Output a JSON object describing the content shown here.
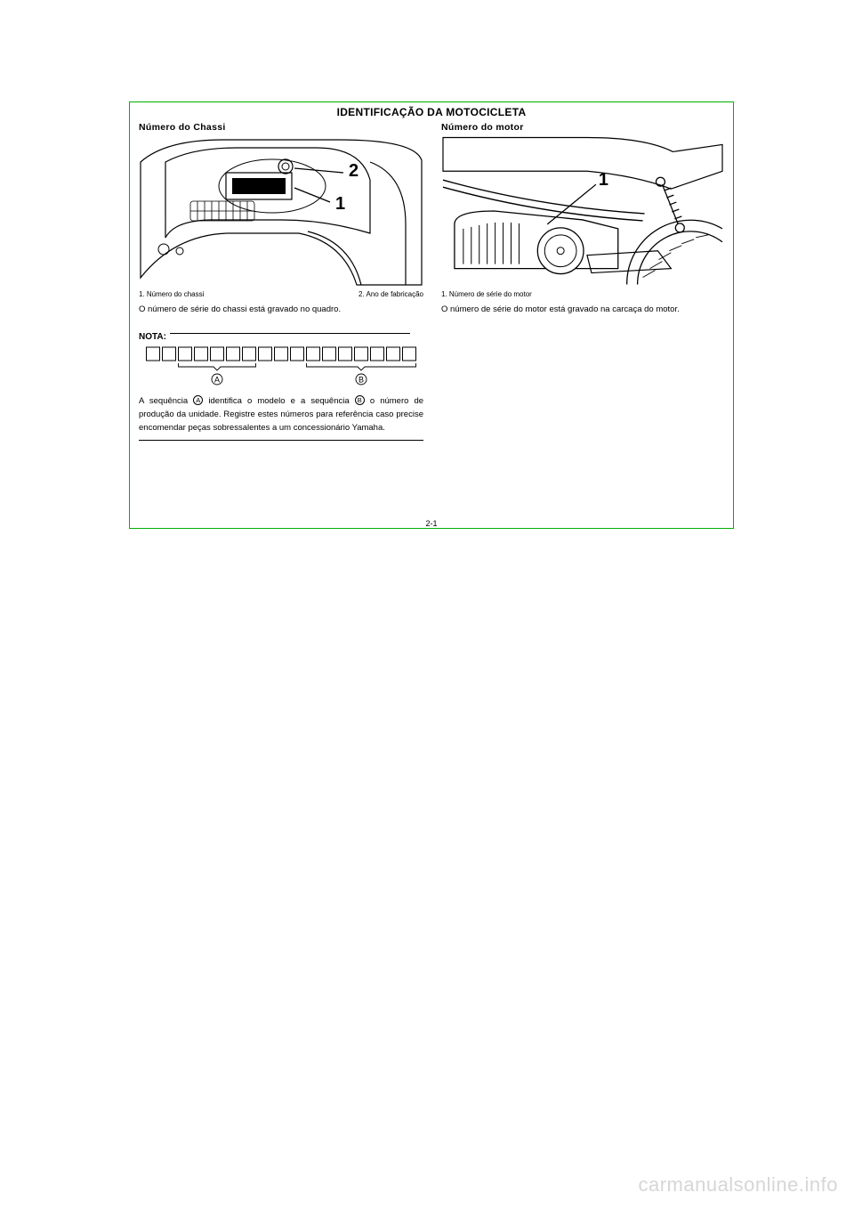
{
  "section_title": "IDENTIFICAÇÃO DA MOTOCICLETA",
  "page_number": "2-1",
  "watermark": "carmanualsonline.info",
  "left": {
    "subtitle": "Número do Chassi",
    "figure": {
      "stroke_color": "#000000",
      "stroke_width": 1.3,
      "bg": "#ffffff",
      "label1": "1",
      "label2": "2",
      "label_font_size": 18
    },
    "caption_left": "1. Número do chassi",
    "caption_right": "2. Ano de fabricação",
    "body": "O número de série do chassi está gravado no quadro.",
    "nota_label": "NOTA:",
    "sequence": {
      "box_count": 17,
      "box_size": 15,
      "box_gap": 3,
      "box_stroke": "#000000",
      "bracket_a_range": [
        2,
        6
      ],
      "bracket_b_range": [
        10,
        16
      ],
      "label_a": "A",
      "label_b": "B"
    },
    "note_text_pre": "A sequência",
    "note_text_mid1": "identifica o modelo e a sequência",
    "note_text_mid2": "o número de produção da unidade. Registre estes números para referência caso precise encomendar peças sobressalentes a um concessionário Yamaha.",
    "circ_a": "A",
    "circ_b": "B"
  },
  "right": {
    "subtitle": "Número do motor",
    "figure": {
      "stroke_color": "#000000",
      "stroke_width": 1.3,
      "bg": "#ffffff",
      "label1": "1",
      "label_font_size": 18
    },
    "caption_left": "1. Número de série do motor",
    "body": "O número de série do motor está gravado na carcaça do motor."
  }
}
